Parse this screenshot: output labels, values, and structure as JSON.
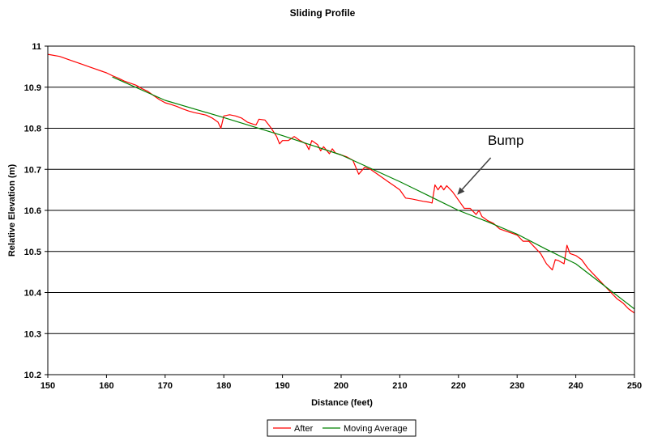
{
  "chart_data": {
    "type": "line",
    "title": "Sliding Profile",
    "xlabel": "Distance (feet)",
    "ylabel": "Relative Elevation (m)",
    "xlim": [
      150,
      250
    ],
    "ylim": [
      10.2,
      11
    ],
    "xticks": [
      "150",
      "160",
      "170",
      "180",
      "190",
      "200",
      "210",
      "220",
      "230",
      "240",
      "250"
    ],
    "yticks": [
      "10.2",
      "10.3",
      "10.4",
      "10.5",
      "10.6",
      "10.7",
      "10.8",
      "10.9",
      "11"
    ],
    "grid": "horizontal",
    "legend_position": "bottom",
    "series": [
      {
        "name": "After",
        "color": "#ff0000",
        "points": [
          [
            150,
            10.98
          ],
          [
            152,
            10.975
          ],
          [
            154,
            10.965
          ],
          [
            156,
            10.955
          ],
          [
            157,
            10.95
          ],
          [
            158,
            10.945
          ],
          [
            159,
            10.94
          ],
          [
            160,
            10.935
          ],
          [
            161,
            10.928
          ],
          [
            162,
            10.922
          ],
          [
            163,
            10.915
          ],
          [
            164,
            10.91
          ],
          [
            165,
            10.905
          ],
          [
            166,
            10.897
          ],
          [
            167,
            10.89
          ],
          [
            168,
            10.88
          ],
          [
            169,
            10.87
          ],
          [
            170,
            10.862
          ],
          [
            171,
            10.858
          ],
          [
            172,
            10.853
          ],
          [
            173,
            10.847
          ],
          [
            174,
            10.842
          ],
          [
            175,
            10.838
          ],
          [
            176,
            10.835
          ],
          [
            177,
            10.832
          ],
          [
            178,
            10.825
          ],
          [
            179,
            10.815
          ],
          [
            179.5,
            10.8
          ],
          [
            180,
            10.83
          ],
          [
            181,
            10.833
          ],
          [
            182,
            10.83
          ],
          [
            183,
            10.825
          ],
          [
            184,
            10.815
          ],
          [
            185,
            10.81
          ],
          [
            185.5,
            10.808
          ],
          [
            186,
            10.822
          ],
          [
            187,
            10.82
          ],
          [
            188,
            10.802
          ],
          [
            189,
            10.78
          ],
          [
            189.5,
            10.762
          ],
          [
            190,
            10.77
          ],
          [
            191,
            10.77
          ],
          [
            192,
            10.78
          ],
          [
            193,
            10.77
          ],
          [
            194,
            10.762
          ],
          [
            194.5,
            10.748
          ],
          [
            195,
            10.77
          ],
          [
            196,
            10.76
          ],
          [
            196.5,
            10.745
          ],
          [
            197,
            10.755
          ],
          [
            198,
            10.738
          ],
          [
            198.5,
            10.75
          ],
          [
            199,
            10.74
          ],
          [
            200,
            10.735
          ],
          [
            201,
            10.73
          ],
          [
            202,
            10.722
          ],
          [
            203,
            10.688
          ],
          [
            204,
            10.705
          ],
          [
            205,
            10.7
          ],
          [
            206,
            10.69
          ],
          [
            207,
            10.68
          ],
          [
            208,
            10.67
          ],
          [
            209,
            10.66
          ],
          [
            210,
            10.65
          ],
          [
            211,
            10.63
          ],
          [
            212,
            10.628
          ],
          [
            213,
            10.625
          ],
          [
            214,
            10.622
          ],
          [
            215,
            10.62
          ],
          [
            215.5,
            10.618
          ],
          [
            216,
            10.662
          ],
          [
            216.5,
            10.65
          ],
          [
            217,
            10.66
          ],
          [
            217.5,
            10.65
          ],
          [
            218,
            10.66
          ],
          [
            219,
            10.645
          ],
          [
            220,
            10.625
          ],
          [
            221,
            10.605
          ],
          [
            222,
            10.605
          ],
          [
            223,
            10.59
          ],
          [
            223.5,
            10.6
          ],
          [
            224,
            10.585
          ],
          [
            225,
            10.575
          ],
          [
            226,
            10.568
          ],
          [
            227,
            10.555
          ],
          [
            228,
            10.55
          ],
          [
            229,
            10.545
          ],
          [
            230,
            10.54
          ],
          [
            231,
            10.525
          ],
          [
            232,
            10.525
          ],
          [
            233,
            10.51
          ],
          [
            234,
            10.495
          ],
          [
            235,
            10.47
          ],
          [
            236,
            10.455
          ],
          [
            236.5,
            10.48
          ],
          [
            237,
            10.478
          ],
          [
            238,
            10.47
          ],
          [
            238.5,
            10.515
          ],
          [
            239,
            10.495
          ],
          [
            240,
            10.49
          ],
          [
            241,
            10.48
          ],
          [
            242,
            10.46
          ],
          [
            243,
            10.445
          ],
          [
            244,
            10.43
          ],
          [
            245,
            10.415
          ],
          [
            246,
            10.4
          ],
          [
            247,
            10.385
          ],
          [
            248,
            10.375
          ],
          [
            249,
            10.36
          ],
          [
            250,
            10.35
          ]
        ]
      },
      {
        "name": "Moving Average",
        "color": "#008000",
        "points": [
          [
            161,
            10.925
          ],
          [
            170,
            10.868
          ],
          [
            180,
            10.826
          ],
          [
            190,
            10.782
          ],
          [
            200,
            10.735
          ],
          [
            210,
            10.67
          ],
          [
            215,
            10.635
          ],
          [
            220,
            10.6
          ],
          [
            225,
            10.572
          ],
          [
            230,
            10.542
          ],
          [
            235,
            10.505
          ],
          [
            240,
            10.47
          ],
          [
            245,
            10.415
          ],
          [
            250,
            10.36
          ]
        ]
      }
    ],
    "annotation": {
      "text": "Bump",
      "text_at": [
        225,
        10.76
      ],
      "arrow_from": [
        225.5,
        10.728
      ],
      "arrow_to": [
        219.8,
        10.638
      ]
    }
  }
}
